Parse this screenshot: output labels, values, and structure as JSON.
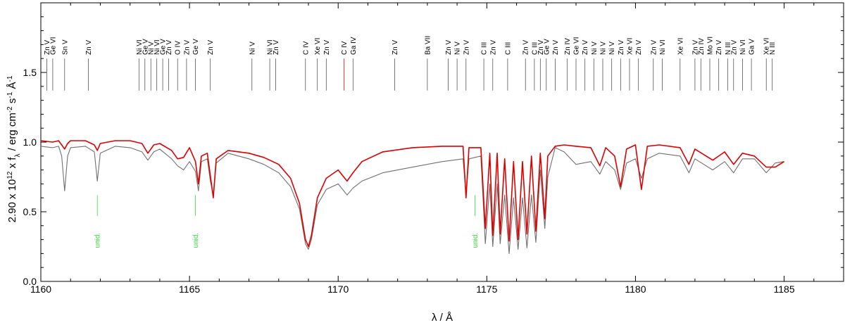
{
  "chart_data": {
    "type": "line",
    "xlabel": "λ / Å",
    "ylabel_parts": {
      "a": "2.90 x 10",
      "b": "12",
      "c": " x f",
      "d": "λ",
      "e": " / erg cm",
      "f": "-2",
      "g": " s",
      "h": "-1",
      "i": " Å",
      "j": "-1"
    },
    "xlim": [
      1160,
      1187
    ],
    "ylim": [
      0,
      2.0
    ],
    "x_ticks": [
      1160,
      1165,
      1170,
      1175,
      1180,
      1185
    ],
    "y_ticks": [
      0.0,
      0.5,
      1.0,
      1.5
    ],
    "y_tick_labels": [
      "0.0",
      "0.5",
      "1.0",
      "1.5"
    ],
    "colors": {
      "observed": "#707070",
      "model": "#dd0000",
      "unidentified": "#33dd33",
      "line_ids": "#555555",
      "highlight": "#dd0000"
    },
    "series": [
      {
        "key": "observed",
        "style": "gray",
        "points": [
          [
            1160,
            0.97
          ],
          [
            1160.4,
            0.96
          ],
          [
            1160.6,
            0.97
          ],
          [
            1160.7,
            0.9
          ],
          [
            1160.8,
            0.65
          ],
          [
            1160.9,
            0.9
          ],
          [
            1161.0,
            0.96
          ],
          [
            1161.5,
            0.97
          ],
          [
            1161.8,
            0.93
          ],
          [
            1161.9,
            0.72
          ],
          [
            1162.0,
            0.92
          ],
          [
            1162.5,
            0.97
          ],
          [
            1163.0,
            0.96
          ],
          [
            1163.4,
            0.93
          ],
          [
            1163.6,
            0.87
          ],
          [
            1163.8,
            0.93
          ],
          [
            1164.0,
            0.95
          ],
          [
            1164.4,
            0.88
          ],
          [
            1164.6,
            0.83
          ],
          [
            1164.8,
            0.8
          ],
          [
            1165.0,
            0.86
          ],
          [
            1165.2,
            0.79
          ],
          [
            1165.3,
            0.65
          ],
          [
            1165.4,
            0.86
          ],
          [
            1165.6,
            0.88
          ],
          [
            1165.7,
            0.72
          ],
          [
            1165.8,
            0.62
          ],
          [
            1165.9,
            0.85
          ],
          [
            1166.3,
            0.92
          ],
          [
            1167.0,
            0.88
          ],
          [
            1167.5,
            0.84
          ],
          [
            1168.0,
            0.78
          ],
          [
            1168.4,
            0.68
          ],
          [
            1168.7,
            0.52
          ],
          [
            1168.9,
            0.27
          ],
          [
            1169.0,
            0.23
          ],
          [
            1169.1,
            0.3
          ],
          [
            1169.3,
            0.55
          ],
          [
            1169.6,
            0.66
          ],
          [
            1170.0,
            0.7
          ],
          [
            1170.3,
            0.62
          ],
          [
            1170.5,
            0.67
          ],
          [
            1170.8,
            0.72
          ],
          [
            1171.5,
            0.78
          ],
          [
            1172.5,
            0.82
          ],
          [
            1173.5,
            0.86
          ],
          [
            1174.2,
            0.88
          ],
          [
            1174.3,
            0.63
          ],
          [
            1174.4,
            0.88
          ],
          [
            1174.8,
            0.9
          ],
          [
            1174.95,
            0.27
          ],
          [
            1175.1,
            0.7
          ],
          [
            1175.2,
            0.25
          ],
          [
            1175.35,
            0.7
          ],
          [
            1175.45,
            0.27
          ],
          [
            1175.6,
            0.62
          ],
          [
            1175.75,
            0.2
          ],
          [
            1175.9,
            0.6
          ],
          [
            1176.05,
            0.23
          ],
          [
            1176.2,
            0.6
          ],
          [
            1176.35,
            0.24
          ],
          [
            1176.5,
            0.62
          ],
          [
            1176.65,
            0.28
          ],
          [
            1176.8,
            0.8
          ],
          [
            1176.95,
            0.38
          ],
          [
            1177.05,
            0.75
          ],
          [
            1177.3,
            0.96
          ],
          [
            1177.6,
            0.93
          ],
          [
            1178.0,
            0.84
          ],
          [
            1178.5,
            0.86
          ],
          [
            1178.8,
            0.77
          ],
          [
            1179.0,
            0.86
          ],
          [
            1179.3,
            0.8
          ],
          [
            1179.5,
            0.66
          ],
          [
            1179.7,
            0.85
          ],
          [
            1180.0,
            0.88
          ],
          [
            1180.2,
            0.74
          ],
          [
            1180.4,
            0.88
          ],
          [
            1180.8,
            0.92
          ],
          [
            1181.5,
            0.9
          ],
          [
            1181.8,
            0.78
          ],
          [
            1182.0,
            0.88
          ],
          [
            1182.6,
            0.8
          ],
          [
            1183.0,
            0.86
          ],
          [
            1183.3,
            0.78
          ],
          [
            1183.6,
            0.88
          ],
          [
            1184.0,
            0.88
          ],
          [
            1184.4,
            0.78
          ],
          [
            1184.7,
            0.85
          ],
          [
            1185.0,
            0.86
          ]
        ]
      },
      {
        "key": "model",
        "style": "red",
        "points": [
          [
            1160,
            1.01
          ],
          [
            1160.4,
            1.0
          ],
          [
            1160.6,
            1.01
          ],
          [
            1160.7,
            0.98
          ],
          [
            1160.8,
            0.95
          ],
          [
            1160.9,
            0.99
          ],
          [
            1161.0,
            1.01
          ],
          [
            1161.5,
            1.01
          ],
          [
            1161.8,
            0.98
          ],
          [
            1161.9,
            0.94
          ],
          [
            1162.0,
            0.99
          ],
          [
            1162.5,
            1.01
          ],
          [
            1163.0,
            1.01
          ],
          [
            1163.4,
            0.99
          ],
          [
            1163.6,
            0.92
          ],
          [
            1163.8,
            0.98
          ],
          [
            1164.0,
            0.99
          ],
          [
            1164.4,
            0.94
          ],
          [
            1164.6,
            0.88
          ],
          [
            1164.8,
            0.89
          ],
          [
            1165.0,
            0.96
          ],
          [
            1165.2,
            0.86
          ],
          [
            1165.3,
            0.7
          ],
          [
            1165.4,
            0.9
          ],
          [
            1165.6,
            0.92
          ],
          [
            1165.7,
            0.76
          ],
          [
            1165.8,
            0.6
          ],
          [
            1165.9,
            0.88
          ],
          [
            1166.3,
            0.94
          ],
          [
            1167.0,
            0.92
          ],
          [
            1167.5,
            0.89
          ],
          [
            1168.0,
            0.84
          ],
          [
            1168.4,
            0.74
          ],
          [
            1168.7,
            0.56
          ],
          [
            1168.9,
            0.3
          ],
          [
            1169.0,
            0.25
          ],
          [
            1169.1,
            0.33
          ],
          [
            1169.3,
            0.6
          ],
          [
            1169.6,
            0.74
          ],
          [
            1170.0,
            0.8
          ],
          [
            1170.3,
            0.72
          ],
          [
            1170.5,
            0.78
          ],
          [
            1170.8,
            0.86
          ],
          [
            1171.5,
            0.93
          ],
          [
            1172.5,
            0.96
          ],
          [
            1173.5,
            0.97
          ],
          [
            1174.2,
            0.97
          ],
          [
            1174.3,
            0.6
          ],
          [
            1174.4,
            0.96
          ],
          [
            1174.8,
            0.96
          ],
          [
            1174.95,
            0.38
          ],
          [
            1175.1,
            0.92
          ],
          [
            1175.2,
            0.33
          ],
          [
            1175.35,
            0.92
          ],
          [
            1175.45,
            0.34
          ],
          [
            1175.6,
            0.88
          ],
          [
            1175.75,
            0.29
          ],
          [
            1175.9,
            0.86
          ],
          [
            1176.05,
            0.3
          ],
          [
            1176.2,
            0.86
          ],
          [
            1176.35,
            0.34
          ],
          [
            1176.5,
            0.9
          ],
          [
            1176.65,
            0.36
          ],
          [
            1176.8,
            0.92
          ],
          [
            1176.95,
            0.45
          ],
          [
            1177.05,
            0.9
          ],
          [
            1177.3,
            0.97
          ],
          [
            1177.6,
            0.98
          ],
          [
            1178.0,
            0.97
          ],
          [
            1178.5,
            0.96
          ],
          [
            1178.8,
            0.83
          ],
          [
            1179.0,
            0.96
          ],
          [
            1179.3,
            0.9
          ],
          [
            1179.5,
            0.68
          ],
          [
            1179.7,
            0.95
          ],
          [
            1180.0,
            0.98
          ],
          [
            1180.2,
            0.66
          ],
          [
            1180.4,
            0.97
          ],
          [
            1180.8,
            0.98
          ],
          [
            1181.5,
            0.96
          ],
          [
            1181.8,
            0.84
          ],
          [
            1182.0,
            0.95
          ],
          [
            1182.6,
            0.87
          ],
          [
            1183.0,
            0.93
          ],
          [
            1183.3,
            0.84
          ],
          [
            1183.6,
            0.92
          ],
          [
            1184.0,
            0.9
          ],
          [
            1184.4,
            0.82
          ],
          [
            1184.7,
            0.82
          ],
          [
            1185.0,
            0.86
          ]
        ]
      }
    ],
    "line_ids": [
      {
        "label": "Zn V",
        "x": 1160.2
      },
      {
        "label": "Ge VI",
        "x": 1160.4
      },
      {
        "label": "Sn V",
        "x": 1160.8
      },
      {
        "label": "Zn V",
        "x": 1161.6
      },
      {
        "label": "Ni VI",
        "x": 1163.3
      },
      {
        "label": "Ge V",
        "x": 1163.5
      },
      {
        "label": "Ni V",
        "x": 1163.7
      },
      {
        "label": "Ni VI",
        "x": 1163.9
      },
      {
        "label": "Ge V",
        "x": 1164.1
      },
      {
        "label": "Zn V",
        "x": 1164.3
      },
      {
        "label": "O IV",
        "x": 1164.6
      },
      {
        "label": "Zn V",
        "x": 1164.9
      },
      {
        "label": "Ge V",
        "x": 1165.2
      },
      {
        "label": "Zn V",
        "x": 1165.7
      },
      {
        "label": "Ni V",
        "x": 1167.1
      },
      {
        "label": "Ni VI",
        "x": 1167.7
      },
      {
        "label": "Zn V",
        "x": 1167.9
      },
      {
        "label": "C IV",
        "x": 1168.9
      },
      {
        "label": "Xe VI",
        "x": 1169.3
      },
      {
        "label": "Zn V",
        "x": 1169.6
      },
      {
        "label": "C IV",
        "x": 1170.2,
        "color": "highlight"
      },
      {
        "label": "Ga IV",
        "x": 1170.5
      },
      {
        "label": "Zn V",
        "x": 1171.9
      },
      {
        "label": "Ba VII",
        "x": 1173.0
      },
      {
        "label": "Zn V",
        "x": 1173.7
      },
      {
        "label": "Ni V",
        "x": 1174.0
      },
      {
        "label": "Zn V",
        "x": 1174.3
      },
      {
        "label": "C III",
        "x": 1174.9
      },
      {
        "label": "Zn V",
        "x": 1175.2
      },
      {
        "label": "C III",
        "x": 1175.7
      },
      {
        "label": "Zn V",
        "x": 1176.3
      },
      {
        "label": "C III",
        "x": 1176.6
      },
      {
        "label": "Zn V",
        "x": 1176.8
      },
      {
        "label": "Ge V",
        "x": 1177.0
      },
      {
        "label": "Zn V",
        "x": 1177.3
      },
      {
        "label": "Zn IV",
        "x": 1177.7
      },
      {
        "label": "Ge VI",
        "x": 1178.0
      },
      {
        "label": "Zn V",
        "x": 1178.3
      },
      {
        "label": "Ni V",
        "x": 1178.6
      },
      {
        "label": "Ni V",
        "x": 1178.9
      },
      {
        "label": "Ni V",
        "x": 1179.2
      },
      {
        "label": "Zn V",
        "x": 1179.5
      },
      {
        "label": "Xe VI",
        "x": 1179.8
      },
      {
        "label": "Zn V",
        "x": 1180.1
      },
      {
        "label": "Zn V",
        "x": 1180.6
      },
      {
        "label": "Ni VI",
        "x": 1180.9
      },
      {
        "label": "Xe VI",
        "x": 1181.5
      },
      {
        "label": "Zn V",
        "x": 1182.0
      },
      {
        "label": "Zn IV",
        "x": 1182.2
      },
      {
        "label": "Mo VI",
        "x": 1182.5
      },
      {
        "label": "Zn V",
        "x": 1182.8
      },
      {
        "label": "N III",
        "x": 1183.1
      },
      {
        "label": "Zn V",
        "x": 1183.3
      },
      {
        "label": "Ni VI",
        "x": 1183.6
      },
      {
        "label": "Ga V",
        "x": 1183.9
      },
      {
        "label": "Xe VI",
        "x": 1184.4
      },
      {
        "label": "N III",
        "x": 1184.6
      }
    ],
    "unidentified": [
      {
        "label": "unid.",
        "x": 1161.9
      },
      {
        "label": "unid.",
        "x": 1165.2
      },
      {
        "label": "unid.",
        "x": 1174.6
      }
    ]
  }
}
